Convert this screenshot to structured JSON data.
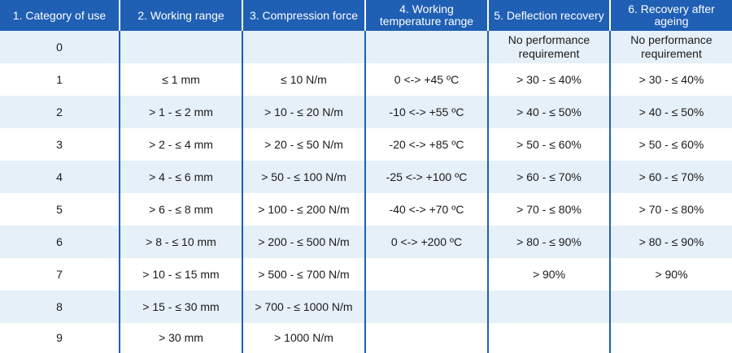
{
  "headers": [
    "1. Category of use",
    "2. Working range",
    "3. Compression force",
    "4. Working temperature range",
    "5. Deflection recovery",
    "6. Recovery after ageing"
  ],
  "rows": [
    [
      "0",
      "",
      "",
      "",
      "No performance requirement",
      "No performance requirement"
    ],
    [
      "1",
      "≤ 1 mm",
      "≤ 10 N/m",
      "0 <-> +45 ºC",
      "> 30 - ≤ 40%",
      "> 30 - ≤ 40%"
    ],
    [
      "2",
      "> 1 - ≤ 2 mm",
      "> 10 - ≤ 20 N/m",
      "-10 <-> +55 ºC",
      "> 40 - ≤ 50%",
      "> 40 - ≤ 50%"
    ],
    [
      "3",
      "> 2 - ≤ 4 mm",
      "> 20 - ≤ 50 N/m",
      "-20 <-> +85 ºC",
      "> 50 - ≤ 60%",
      "> 50 - ≤ 60%"
    ],
    [
      "4",
      "> 4 - ≤ 6 mm",
      "> 50 - ≤ 100 N/m",
      "-25 <-> +100 ºC",
      "> 60 - ≤ 70%",
      "> 60 - ≤ 70%"
    ],
    [
      "5",
      "> 6 - ≤ 8 mm",
      "> 100 - ≤ 200 N/m",
      "-40 <-> +70 ºC",
      "> 70 - ≤ 80%",
      "> 70 - ≤ 80%"
    ],
    [
      "6",
      "> 8 - ≤ 10 mm",
      "> 200 - ≤ 500 N/m",
      "0 <-> +200 ºC",
      "> 80 - ≤ 90%",
      "> 80 - ≤ 90%"
    ],
    [
      "7",
      "> 10 - ≤ 15 mm",
      "> 500 - ≤ 700 N/m",
      "",
      "> 90%",
      "> 90%"
    ],
    [
      "8",
      "> 15 - ≤ 30 mm",
      "> 700 - ≤ 1000 N/m",
      "",
      "",
      ""
    ],
    [
      "9",
      "> 30 mm",
      "> 1000 N/m",
      "",
      "",
      ""
    ]
  ],
  "colors": {
    "header_bg": "#1f5fb4",
    "header_text": "#ffffff",
    "stripe_bg": "#e6f0f8",
    "row_bg": "#ffffff",
    "divider": "#1f5fb4"
  }
}
